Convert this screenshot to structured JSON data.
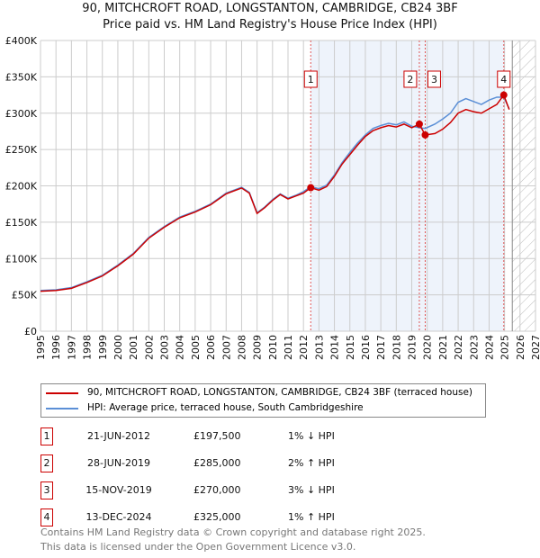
{
  "chart_data": {
    "type": "line",
    "title": "90, MITCHCROFT ROAD, LONGSTANTON, CAMBRIDGE, CB24 3BF",
    "subtitle": "Price paid vs. HM Land Registry's House Price Index (HPI)",
    "xlim": [
      1995,
      2027
    ],
    "ylim": [
      0,
      400000
    ],
    "x_ticks": [
      "1995",
      "1996",
      "1997",
      "1998",
      "1999",
      "2000",
      "2001",
      "2002",
      "2003",
      "2004",
      "2005",
      "2006",
      "2007",
      "2008",
      "2009",
      "2010",
      "2011",
      "2012",
      "2013",
      "2014",
      "2015",
      "2016",
      "2017",
      "2018",
      "2019",
      "2020",
      "2021",
      "2022",
      "2023",
      "2024",
      "2025",
      "2026",
      "2027"
    ],
    "y_ticks": [
      {
        "v": 0,
        "label": "£0"
      },
      {
        "v": 50000,
        "label": "£50K"
      },
      {
        "v": 100000,
        "label": "£100K"
      },
      {
        "v": 150000,
        "label": "£150K"
      },
      {
        "v": 200000,
        "label": "£200K"
      },
      {
        "v": 250000,
        "label": "£250K"
      },
      {
        "v": 300000,
        "label": "£300K"
      },
      {
        "v": 350000,
        "label": "£350K"
      },
      {
        "v": 400000,
        "label": "£400K"
      }
    ],
    "grid": true,
    "series": [
      {
        "name": "90, MITCHCROFT ROAD, LONGSTANTON, CAMBRIDGE, CB24 3BF (terraced house)",
        "color": "#cc0000",
        "x": [
          1995,
          1996,
          1997,
          1998,
          1999,
          2000,
          2001,
          2002,
          2003,
          2004,
          2005,
          2006,
          2007,
          2008,
          2008.5,
          2009,
          2009.5,
          2010,
          2010.5,
          2011,
          2011.5,
          2012,
          2012.47,
          2013,
          2013.5,
          2014,
          2014.5,
          2015,
          2015.5,
          2016,
          2016.5,
          2017,
          2017.5,
          2018,
          2018.5,
          2019,
          2019.49,
          2019.87,
          2020.5,
          2021,
          2021.5,
          2022,
          2022.5,
          2023,
          2023.5,
          2024,
          2024.5,
          2024.95,
          2025.3
        ],
        "y": [
          55000,
          56000,
          59000,
          67000,
          76000,
          90000,
          106000,
          128000,
          143000,
          156000,
          164000,
          174000,
          189000,
          197000,
          190000,
          162000,
          170000,
          180000,
          188000,
          182000,
          186000,
          190000,
          197500,
          194000,
          199000,
          213000,
          230000,
          243000,
          256000,
          268000,
          276000,
          280000,
          283000,
          281000,
          285000,
          280000,
          285000,
          270000,
          272000,
          278000,
          287000,
          300000,
          305000,
          302000,
          300000,
          306000,
          312000,
          325000,
          305000
        ]
      },
      {
        "name": "HPI: Average price, terraced house, South Cambridgeshire",
        "color": "#5b8fd6",
        "x": [
          1995,
          1996,
          1997,
          1998,
          1999,
          2000,
          2001,
          2002,
          2003,
          2004,
          2005,
          2006,
          2007,
          2008,
          2008.5,
          2009,
          2009.5,
          2010,
          2010.5,
          2011,
          2011.5,
          2012,
          2012.47,
          2013,
          2013.5,
          2014,
          2014.5,
          2015,
          2015.5,
          2016,
          2016.5,
          2017,
          2017.5,
          2018,
          2018.5,
          2019,
          2019.49,
          2019.87,
          2020.5,
          2021,
          2021.5,
          2022,
          2022.5,
          2023,
          2023.5,
          2024,
          2024.5,
          2024.95,
          2025.3
        ],
        "y": [
          56000,
          57000,
          60000,
          68000,
          77000,
          91000,
          107000,
          129000,
          144000,
          157000,
          165000,
          175000,
          190000,
          198000,
          191000,
          163000,
          171000,
          181000,
          189000,
          183000,
          187000,
          192000,
          199000,
          196000,
          201000,
          215000,
          232000,
          246000,
          259000,
          270000,
          279000,
          283000,
          286000,
          284000,
          288000,
          282000,
          280000,
          279000,
          285000,
          292000,
          300000,
          315000,
          320000,
          316000,
          312000,
          318000,
          322000,
          322000,
          306000
        ]
      }
    ],
    "sales": [
      {
        "label": "1",
        "x": 2012.47,
        "price": 197500
      },
      {
        "label": "2",
        "x": 2019.49,
        "price": 285000
      },
      {
        "label": "3",
        "x": 2019.87,
        "price": 270000
      },
      {
        "label": "4",
        "x": 2024.95,
        "price": 325000
      }
    ],
    "shaded_range": [
      2012.47,
      2024.95
    ],
    "hatched_from": 2025.5
  },
  "legend": {
    "property": "90, MITCHCROFT ROAD, LONGSTANTON, CAMBRIDGE, CB24 3BF (terraced house)",
    "hpi": "HPI: Average price, terraced house, South Cambridgeshire"
  },
  "table": [
    {
      "num": "1",
      "date": "21-JUN-2012",
      "price": "£197,500",
      "delta": "1% ↓ HPI"
    },
    {
      "num": "2",
      "date": "28-JUN-2019",
      "price": "£285,000",
      "delta": "2% ↑ HPI"
    },
    {
      "num": "3",
      "date": "15-NOV-2019",
      "price": "£270,000",
      "delta": "3% ↓ HPI"
    },
    {
      "num": "4",
      "date": "13-DEC-2024",
      "price": "£325,000",
      "delta": "1% ↑ HPI"
    }
  ],
  "footer": [
    "Contains HM Land Registry data © Crown copyright and database right 2025.",
    "This data is licensed under the Open Government Licence v3.0."
  ]
}
